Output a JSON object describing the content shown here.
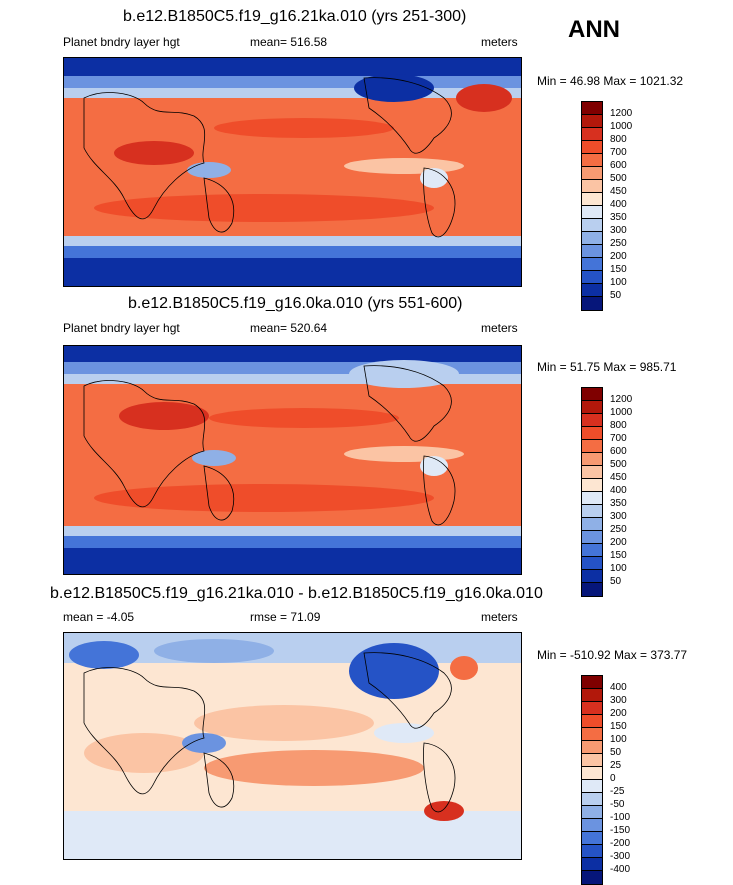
{
  "season": "ANN",
  "panels": [
    {
      "title": "b.e12.B1850C5.f19_g16.21ka.010 (yrs 251-300)",
      "left": "Planet bndry layer hgt",
      "center": "mean= 516.58",
      "right": "meters",
      "minmax": "Min =  46.98 Max = 1021.32",
      "colorbar": {
        "labels": [
          "1200",
          "1000",
          "800",
          "700",
          "600",
          "500",
          "450",
          "400",
          "350",
          "300",
          "250",
          "200",
          "150",
          "100",
          "50"
        ],
        "colors": [
          "#7f0000",
          "#b2180b",
          "#d7301f",
          "#ef4d2a",
          "#f46d43",
          "#f79a72",
          "#fbc4a4",
          "#fde6d2",
          "#dfe9f7",
          "#b9cfef",
          "#8fb0e6",
          "#6b93e0",
          "#4474d8",
          "#2553c6",
          "#0c2fa3",
          "#06167a"
        ]
      }
    },
    {
      "title": "b.e12.B1850C5.f19_g16.0ka.010 (yrs 551-600)",
      "left": "Planet bndry layer hgt",
      "center": "mean= 520.64",
      "right": "meters",
      "minmax": "Min =  51.75 Max = 985.71",
      "colorbar": {
        "labels": [
          "1200",
          "1000",
          "800",
          "700",
          "600",
          "500",
          "450",
          "400",
          "350",
          "300",
          "250",
          "200",
          "150",
          "100",
          "50"
        ],
        "colors": [
          "#7f0000",
          "#b2180b",
          "#d7301f",
          "#ef4d2a",
          "#f46d43",
          "#f79a72",
          "#fbc4a4",
          "#fde6d2",
          "#dfe9f7",
          "#b9cfef",
          "#8fb0e6",
          "#6b93e0",
          "#4474d8",
          "#2553c6",
          "#0c2fa3",
          "#06167a"
        ]
      }
    },
    {
      "title": "b.e12.B1850C5.f19_g16.21ka.010 - b.e12.B1850C5.f19_g16.0ka.010",
      "left": "mean =  -4.05",
      "center": "rmse =  71.09",
      "right": "meters",
      "minmax": "Min = -510.92 Max = 373.77",
      "colorbar": {
        "labels": [
          "400",
          "300",
          "200",
          "150",
          "100",
          "50",
          "25",
          "0",
          "-25",
          "-50",
          "-100",
          "-150",
          "-200",
          "-300",
          "-400"
        ],
        "colors": [
          "#7f0000",
          "#b2180b",
          "#d7301f",
          "#ef4d2a",
          "#f46d43",
          "#f79a72",
          "#fbc4a4",
          "#fde6d2",
          "#dfe9f7",
          "#b9cfef",
          "#8fb0e6",
          "#6b93e0",
          "#4474d8",
          "#2553c6",
          "#0c2fa3",
          "#06167a"
        ]
      }
    }
  ]
}
